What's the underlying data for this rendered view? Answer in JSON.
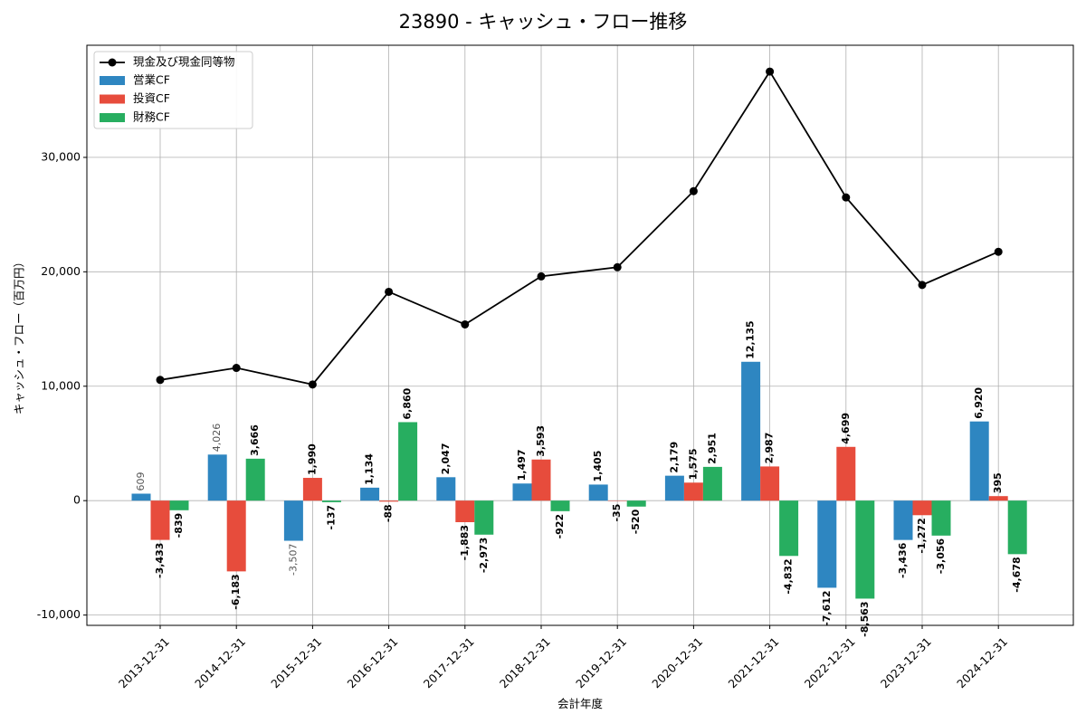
{
  "chart_data": {
    "type": "bar",
    "title": "23890 - キャッシュ・フロー推移",
    "xlabel": "会計年度",
    "ylabel": "キャッシュ・フロー（百万円）",
    "ylim": [
      -10900,
      39800
    ],
    "yticks": [
      -10000,
      0,
      10000,
      20000,
      30000
    ],
    "ytick_labels": [
      "-10,000",
      "0",
      "10,000",
      "20,000",
      "30,000"
    ],
    "grid": true,
    "legend_position": "top-left",
    "categories": [
      "2013-12-31",
      "2014-12-31",
      "2015-12-31",
      "2016-12-31",
      "2017-12-31",
      "2018-12-31",
      "2019-12-31",
      "2020-12-31",
      "2021-12-31",
      "2022-12-31",
      "2023-12-31",
      "2024-12-31"
    ],
    "line_series": {
      "name": "現金及び現金同等物",
      "color": "#000000",
      "values": [
        10550,
        11600,
        10150,
        18250,
        15400,
        19600,
        20400,
        27050,
        37500,
        26500,
        18850,
        21750
      ]
    },
    "series": [
      {
        "name": "営業CF",
        "color": "#2e86c1",
        "values": [
          609,
          4026,
          -3507,
          1134,
          2047,
          1497,
          1405,
          2179,
          12135,
          -7612,
          -3436,
          6920
        ],
        "labels": [
          "609",
          "4,026",
          "-3,507",
          "1,134",
          "2,047",
          "1,497",
          "1,405",
          "2,179",
          "12,135",
          "-7,612",
          "-3,436",
          "6,920"
        ]
      },
      {
        "name": "投資CF",
        "color": "#e74c3c",
        "values": [
          -3433,
          -6183,
          1990,
          -88,
          -1883,
          3593,
          -35,
          1575,
          2987,
          4699,
          -1272,
          395
        ],
        "labels": [
          "-3,433",
          "-6,183",
          "1,990",
          "-88",
          "-1,883",
          "3,593",
          "-35",
          "1,575",
          "2,987",
          "4,699",
          "-1,272",
          "395"
        ]
      },
      {
        "name": "財務CF",
        "color": "#27ae60",
        "values": [
          -839,
          3666,
          -137,
          6860,
          -2973,
          -922,
          -520,
          2951,
          -4832,
          -8563,
          -3056,
          -4678
        ],
        "labels": [
          "-839",
          "3,666",
          "-137",
          "6,860",
          "-2,973",
          "-922",
          "-520",
          "2,951",
          "-4,832",
          "-8,563",
          "-3,056",
          "-4,678"
        ]
      }
    ]
  }
}
